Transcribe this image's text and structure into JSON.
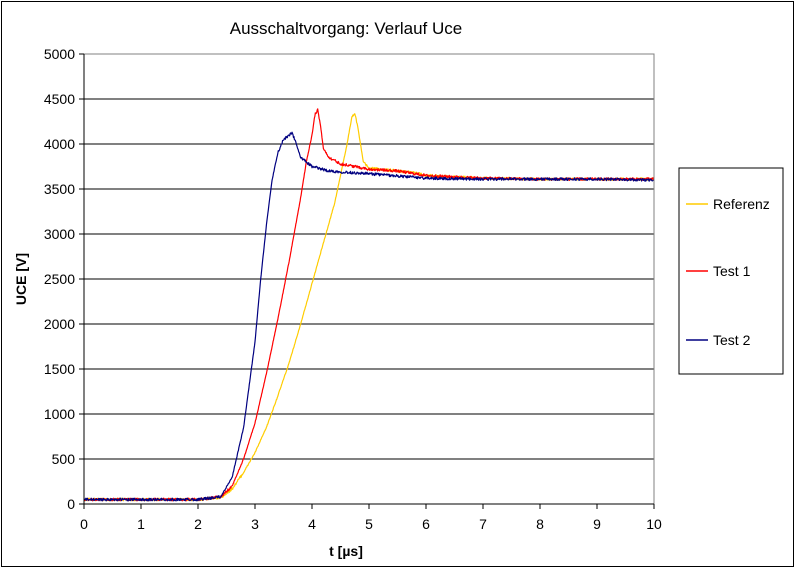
{
  "chart_data": {
    "type": "line",
    "title": "Ausschaltvorgang: Verlauf Uce",
    "xlabel": "t [µs]",
    "ylabel": "UCE [V]",
    "xlim": [
      0,
      10
    ],
    "ylim": [
      0,
      5000
    ],
    "x_ticks": [
      "0",
      "1",
      "2",
      "3",
      "4",
      "5",
      "6",
      "7",
      "8",
      "9",
      "10"
    ],
    "y_ticks": [
      "0",
      "500",
      "1000",
      "1500",
      "2000",
      "2500",
      "3000",
      "3500",
      "4000",
      "4500",
      "5000"
    ],
    "grid": "horizontal",
    "legend_position": "right",
    "series": [
      {
        "name": "Referenz",
        "color": "#FFCC00",
        "x": [
          0,
          2.0,
          2.4,
          2.6,
          2.8,
          3.0,
          3.2,
          3.4,
          3.6,
          3.8,
          4.0,
          4.2,
          4.4,
          4.5,
          4.6,
          4.7,
          4.75,
          4.8,
          4.9,
          5.0,
          5.2,
          5.5,
          5.8,
          6.0,
          7.0,
          8.0,
          9.0,
          10.0
        ],
        "y": [
          50,
          50,
          70,
          170,
          350,
          570,
          850,
          1200,
          1570,
          2000,
          2450,
          2900,
          3350,
          3650,
          3950,
          4300,
          4350,
          4200,
          3800,
          3730,
          3720,
          3700,
          3680,
          3650,
          3620,
          3610,
          3610,
          3610
        ]
      },
      {
        "name": "Test 1",
        "color": "#FF0000",
        "x": [
          0,
          2.0,
          2.4,
          2.6,
          2.8,
          3.0,
          3.2,
          3.4,
          3.6,
          3.8,
          3.9,
          4.0,
          4.05,
          4.1,
          4.15,
          4.2,
          4.3,
          4.5,
          5.0,
          5.5,
          6.0,
          7.0,
          8.0,
          9.0,
          10.0
        ],
        "y": [
          50,
          50,
          80,
          200,
          500,
          900,
          1450,
          2050,
          2700,
          3400,
          3800,
          4100,
          4320,
          4390,
          4200,
          3950,
          3850,
          3780,
          3720,
          3700,
          3650,
          3620,
          3610,
          3610,
          3610
        ]
      },
      {
        "name": "Test 2",
        "color": "#000080",
        "x": [
          0,
          2.0,
          2.4,
          2.6,
          2.8,
          3.0,
          3.1,
          3.2,
          3.3,
          3.4,
          3.5,
          3.6,
          3.65,
          3.7,
          3.8,
          4.0,
          4.3,
          4.5,
          5.0,
          6.0,
          7.0,
          8.0,
          9.0,
          10.0
        ],
        "y": [
          50,
          50,
          80,
          300,
          850,
          1800,
          2500,
          3100,
          3600,
          3900,
          4050,
          4100,
          4120,
          4050,
          3850,
          3750,
          3700,
          3690,
          3670,
          3620,
          3610,
          3610,
          3610,
          3600
        ]
      }
    ]
  }
}
